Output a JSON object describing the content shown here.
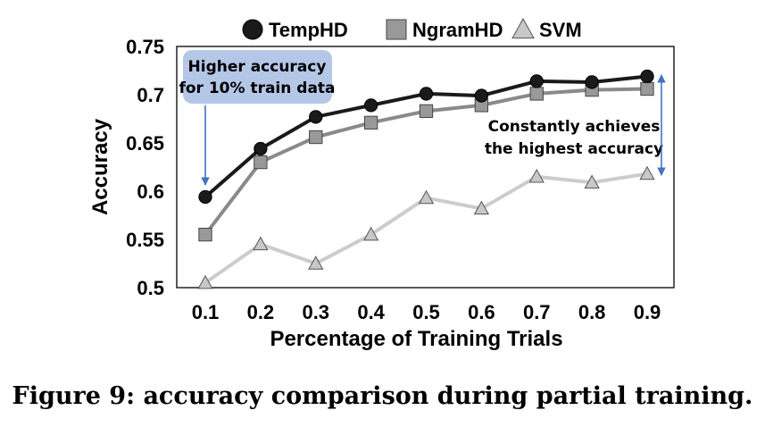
{
  "caption": "Figure 9: accuracy comparison during partial training.",
  "chart_data": {
    "type": "line",
    "x": [
      0.1,
      0.2,
      0.3,
      0.4,
      0.5,
      0.6,
      0.7,
      0.8,
      0.9
    ],
    "x_tick_labels": [
      "0.1",
      "0.2",
      "0.3",
      "0.4",
      "0.5",
      "0.6",
      "0.7",
      "0.8",
      "0.9"
    ],
    "y_tick_labels": [
      "0.5",
      "0.55",
      "0.6",
      "0.65",
      "0.7",
      "0.75"
    ],
    "y_ticks": [
      0.5,
      0.55,
      0.6,
      0.65,
      0.7,
      0.75
    ],
    "xlabel": "Percentage of Training Trials",
    "ylabel": "Accuracy",
    "ylim": [
      0.5,
      0.75
    ],
    "grid": false,
    "legend_placement": "top",
    "series": [
      {
        "name": "TempHD",
        "marker": "circle",
        "color": "#1a1a1a",
        "marker_fill": "#1a1a1a",
        "values": [
          0.594,
          0.644,
          0.677,
          0.689,
          0.701,
          0.699,
          0.714,
          0.713,
          0.719
        ]
      },
      {
        "name": "NgramHD",
        "marker": "square",
        "color": "#8a8a8a",
        "marker_fill": "#999999",
        "values": [
          0.555,
          0.63,
          0.656,
          0.671,
          0.683,
          0.689,
          0.701,
          0.705,
          0.706
        ]
      },
      {
        "name": "SVM",
        "marker": "triangle",
        "color": "#cccccc",
        "marker_fill": "#c8c8c8",
        "values": [
          0.505,
          0.545,
          0.525,
          0.555,
          0.593,
          0.582,
          0.615,
          0.609,
          0.618
        ]
      }
    ],
    "annotations": [
      {
        "lines": [
          "Higher accuracy",
          "for 10% train data"
        ],
        "box_color": "#b4c7e7"
      },
      {
        "lines": [
          "Constantly achieves",
          "the highest accuracy"
        ]
      }
    ]
  }
}
